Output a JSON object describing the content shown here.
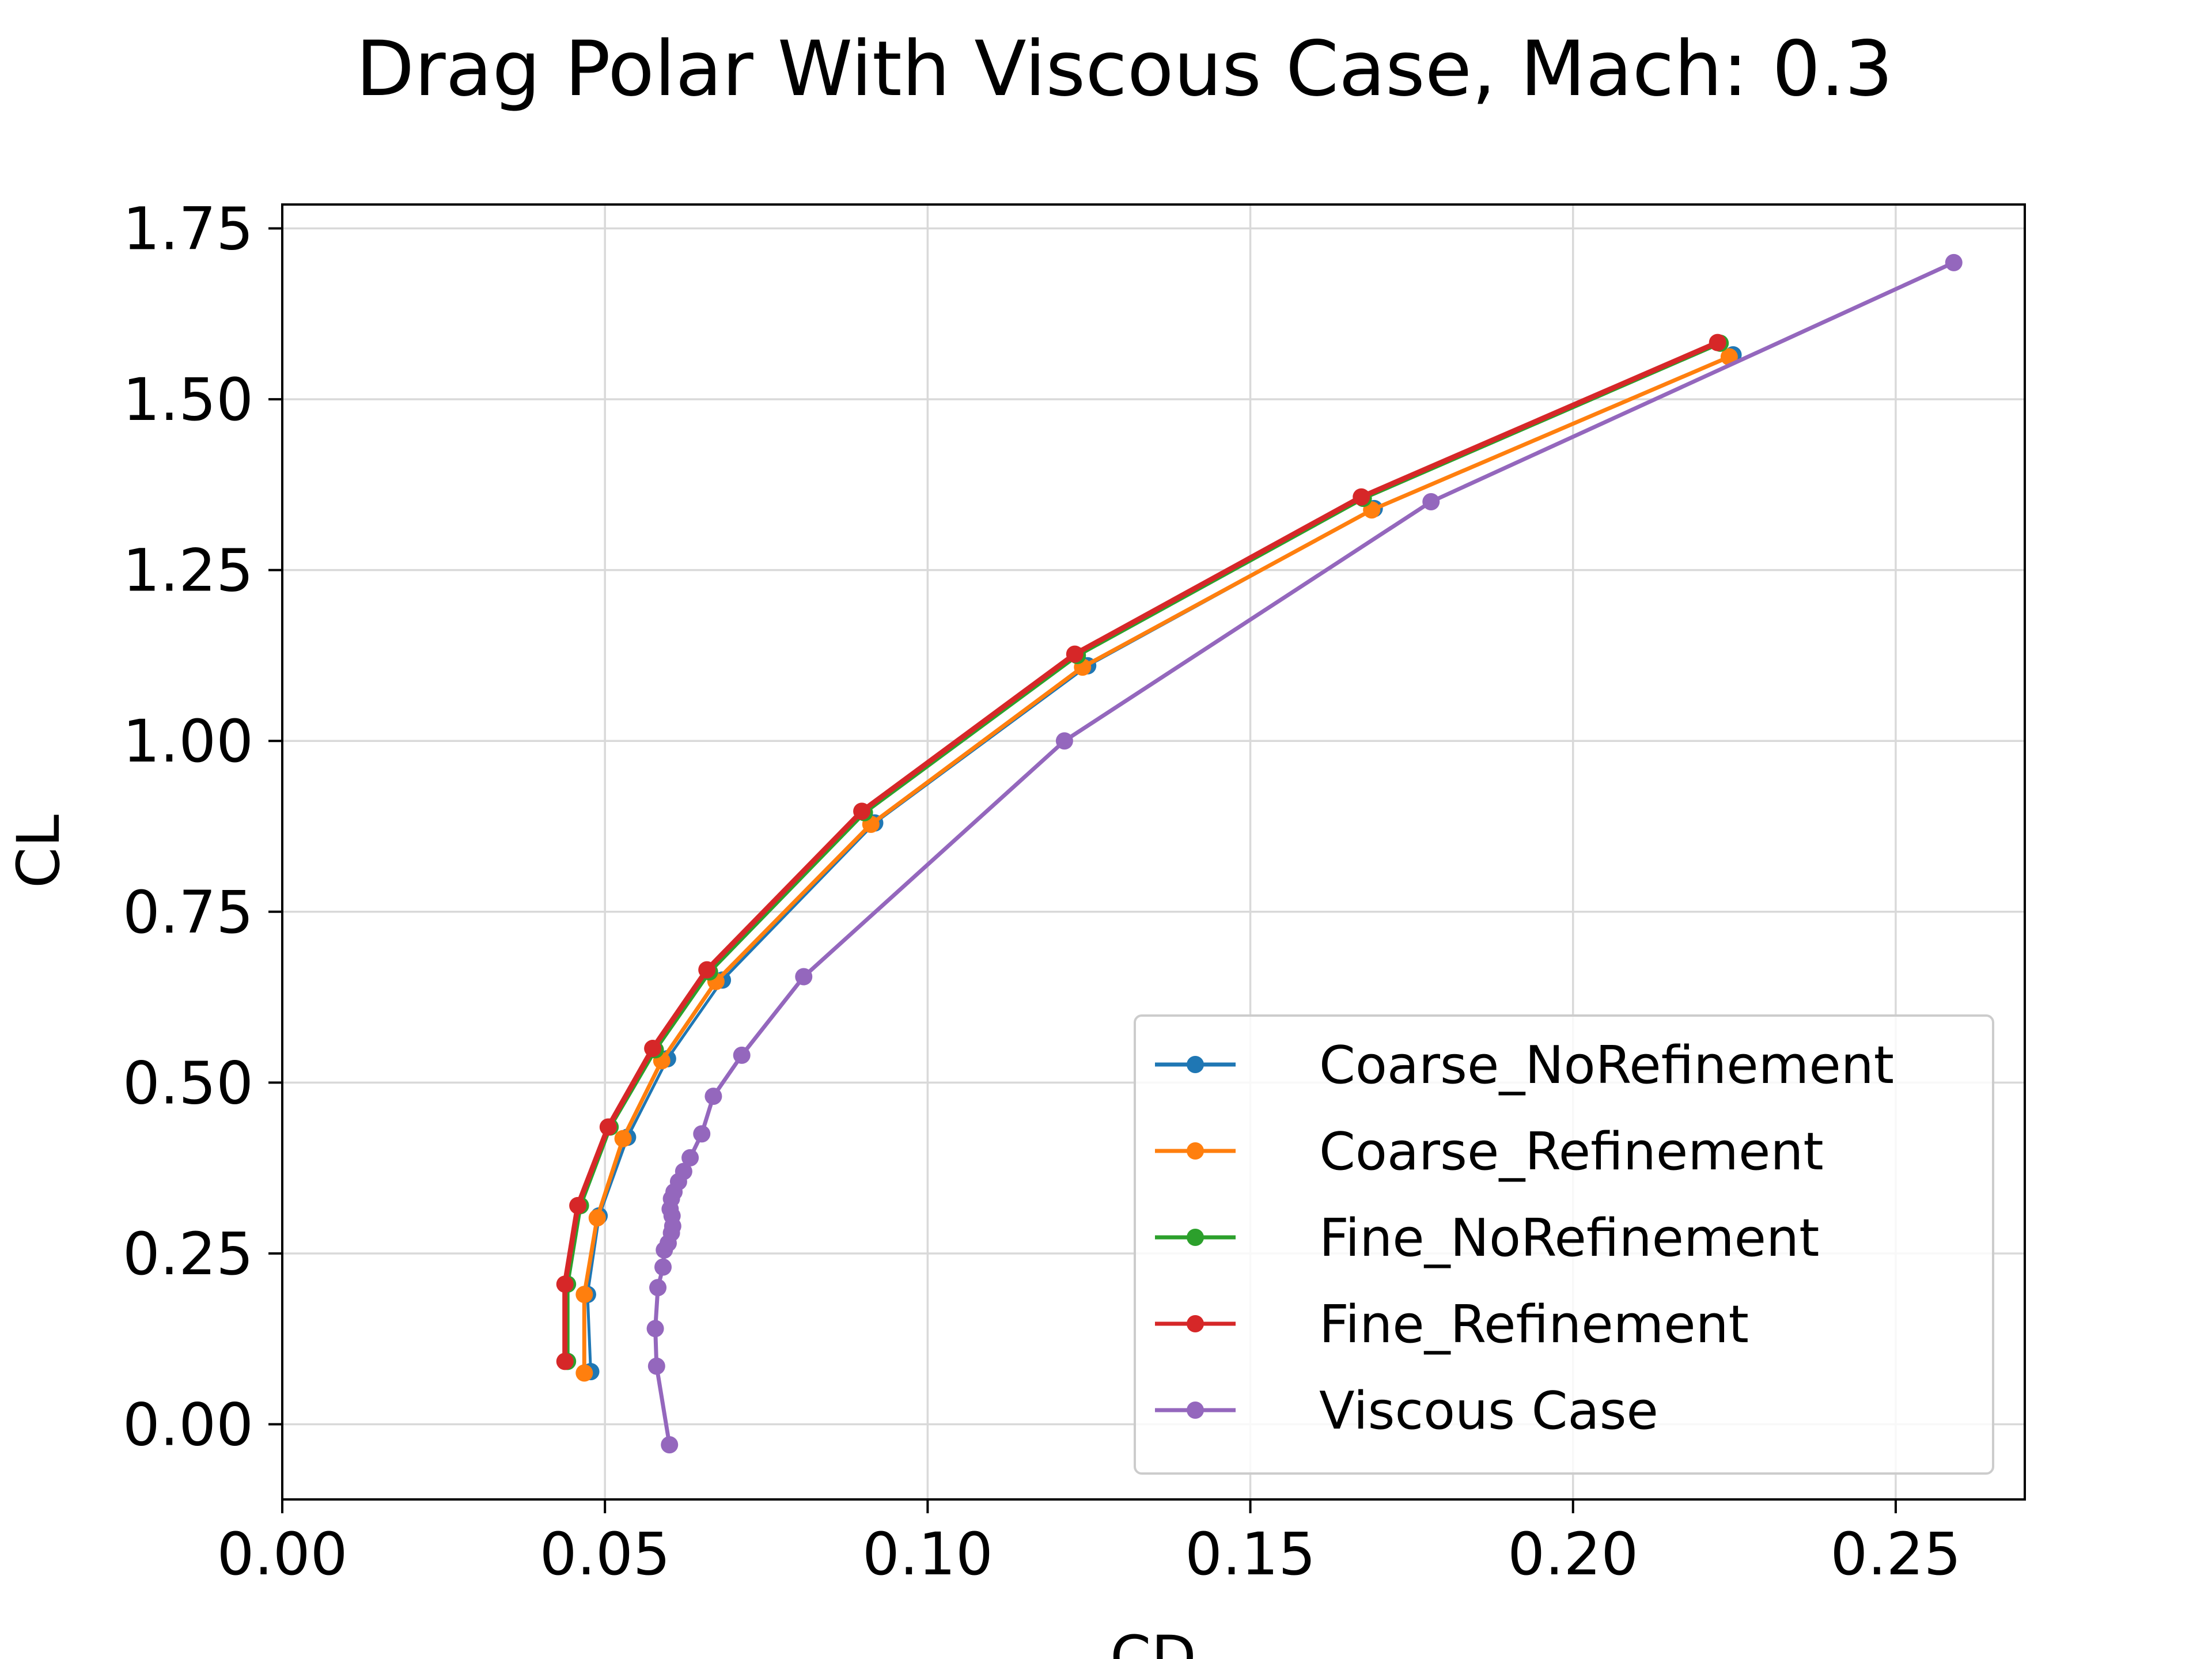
{
  "chart_data": {
    "type": "line",
    "title": "Drag Polar With Viscous Case, Mach: 0.3",
    "xlabel": "CD",
    "ylabel": "CL",
    "xlim": [
      0.0,
      0.27
    ],
    "ylim": [
      -0.11,
      1.785
    ],
    "xticks": [
      0.0,
      0.05,
      0.1,
      0.15,
      0.2,
      0.25
    ],
    "xtick_labels": [
      "0.00",
      "0.05",
      "0.10",
      "0.15",
      "0.20",
      "0.25"
    ],
    "yticks": [
      0.0,
      0.25,
      0.5,
      0.75,
      1.0,
      1.25,
      1.5,
      1.75
    ],
    "ytick_labels": [
      "0.00",
      "0.25",
      "0.50",
      "0.75",
      "1.00",
      "1.25",
      "1.50",
      "1.75"
    ],
    "grid": true,
    "legend_position": "lower-right",
    "series": [
      {
        "name": "Coarse_NoRefinement",
        "color": "#1f77b4",
        "x": [
          0.0478,
          0.0473,
          0.0491,
          0.0535,
          0.0597,
          0.0682,
          0.0918,
          0.1248,
          0.1692,
          0.2248
        ],
        "y": [
          0.077,
          0.19,
          0.305,
          0.42,
          0.535,
          0.65,
          0.88,
          1.11,
          1.34,
          1.565
        ]
      },
      {
        "name": "Coarse_Refinement",
        "color": "#ff7f0e",
        "x": [
          0.0468,
          0.0468,
          0.0488,
          0.0528,
          0.0588,
          0.0672,
          0.0912,
          0.124,
          0.1688,
          0.2242
        ],
        "y": [
          0.075,
          0.19,
          0.302,
          0.418,
          0.532,
          0.648,
          0.878,
          1.108,
          1.338,
          1.562
        ]
      },
      {
        "name": "Fine_NoRefinement",
        "color": "#2ca02c",
        "x": [
          0.0442,
          0.0442,
          0.0462,
          0.0508,
          0.0578,
          0.0662,
          0.0902,
          0.1232,
          0.1675,
          0.2228
        ],
        "y": [
          0.092,
          0.205,
          0.32,
          0.435,
          0.548,
          0.662,
          0.895,
          1.125,
          1.355,
          1.582
        ]
      },
      {
        "name": "Fine_Refinement",
        "color": "#d62728",
        "x": [
          0.0438,
          0.0438,
          0.0458,
          0.0505,
          0.0574,
          0.0658,
          0.0898,
          0.1228,
          0.1672,
          0.2224
        ],
        "y": [
          0.092,
          0.205,
          0.32,
          0.435,
          0.55,
          0.665,
          0.897,
          1.127,
          1.357,
          1.583
        ]
      },
      {
        "name": "Viscous Case",
        "color": "#9467bd",
        "x": [
          0.06,
          0.058,
          0.0578,
          0.0582,
          0.059,
          0.0592,
          0.0598,
          0.0603,
          0.0605,
          0.0604,
          0.0601,
          0.0603,
          0.0607,
          0.0614,
          0.0622,
          0.0632,
          0.065,
          0.0668,
          0.0712,
          0.0808,
          0.1212,
          0.178,
          0.259
        ],
        "y": [
          -0.03,
          0.085,
          0.14,
          0.2,
          0.23,
          0.255,
          0.265,
          0.28,
          0.29,
          0.305,
          0.315,
          0.33,
          0.34,
          0.355,
          0.37,
          0.39,
          0.425,
          0.48,
          0.54,
          0.655,
          1.0,
          1.35,
          1.7
        ]
      }
    ]
  }
}
